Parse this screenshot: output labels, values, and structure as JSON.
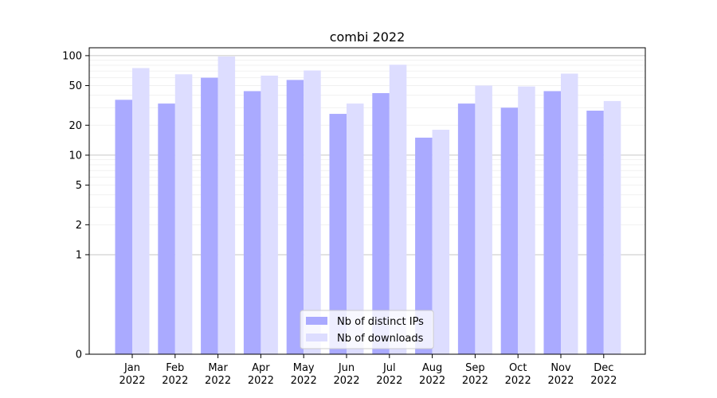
{
  "chart_data": {
    "type": "bar",
    "title": "combi 2022",
    "xlabel": "",
    "ylabel": "",
    "yscale": "symlog",
    "ylim": [
      0,
      120
    ],
    "y_ticks": [
      0,
      1,
      2,
      5,
      10,
      20,
      50,
      100
    ],
    "y_tick_labels": [
      "0",
      "1",
      "2",
      "5",
      "10",
      "20",
      "50",
      "100"
    ],
    "grid": "horizontal",
    "legend_position": "bottom-center",
    "categories": [
      {
        "month": "Jan",
        "year": "2022"
      },
      {
        "month": "Feb",
        "year": "2022"
      },
      {
        "month": "Mar",
        "year": "2022"
      },
      {
        "month": "Apr",
        "year": "2022"
      },
      {
        "month": "May",
        "year": "2022"
      },
      {
        "month": "Jun",
        "year": "2022"
      },
      {
        "month": "Jul",
        "year": "2022"
      },
      {
        "month": "Aug",
        "year": "2022"
      },
      {
        "month": "Sep",
        "year": "2022"
      },
      {
        "month": "Oct",
        "year": "2022"
      },
      {
        "month": "Nov",
        "year": "2022"
      },
      {
        "month": "Dec",
        "year": "2022"
      }
    ],
    "series": [
      {
        "name": "Nb of distinct IPs",
        "color": "#aaaaff",
        "values": [
          36,
          33,
          60,
          44,
          57,
          26,
          42,
          15,
          33,
          30,
          44,
          28
        ]
      },
      {
        "name": "Nb of downloads",
        "color": "#ddddff",
        "values": [
          75,
          65,
          98,
          63,
          71,
          33,
          81,
          18,
          50,
          49,
          66,
          35
        ]
      }
    ]
  }
}
